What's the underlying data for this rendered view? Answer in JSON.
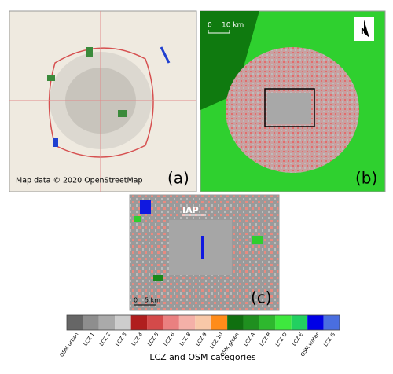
{
  "panels": [
    {
      "label": "(a)",
      "credit": "Map data © 2020 OpenStreetMap"
    },
    {
      "label": "(b)",
      "scale": [
        "0",
        "10 km"
      ],
      "north": "N"
    },
    {
      "label": "(c)",
      "marker": "IAP",
      "scale": [
        "0",
        "5 km"
      ]
    }
  ],
  "legend": {
    "title": "LCZ and OSM categories",
    "categories": [
      {
        "name": "OSM urban",
        "color": "#666666"
      },
      {
        "name": "LCZ 1",
        "color": "#8e8e8e"
      },
      {
        "name": "LCZ 2",
        "color": "#aaaaaa"
      },
      {
        "name": "LCZ 3",
        "color": "#cdcdcd"
      },
      {
        "name": "LCZ 4",
        "color": "#b01e1e"
      },
      {
        "name": "LCZ 5",
        "color": "#d44a4a"
      },
      {
        "name": "LCZ 6",
        "color": "#ea8080"
      },
      {
        "name": "LCZ 8",
        "color": "#f4b0a8"
      },
      {
        "name": "LCZ 9",
        "color": "#f8c8a8"
      },
      {
        "name": "LCZ 10",
        "color": "#ff8c1a"
      },
      {
        "name": "OSM green",
        "color": "#107010"
      },
      {
        "name": "LCZ A",
        "color": "#1f8f1f"
      },
      {
        "name": "LCZ B",
        "color": "#2eb82e"
      },
      {
        "name": "LCZ D",
        "color": "#3ee83e"
      },
      {
        "name": "LCZ E",
        "color": "#22d060"
      },
      {
        "name": "OSM water",
        "color": "#0000e6"
      },
      {
        "name": "LCZ G",
        "color": "#4a6ee0"
      }
    ]
  }
}
